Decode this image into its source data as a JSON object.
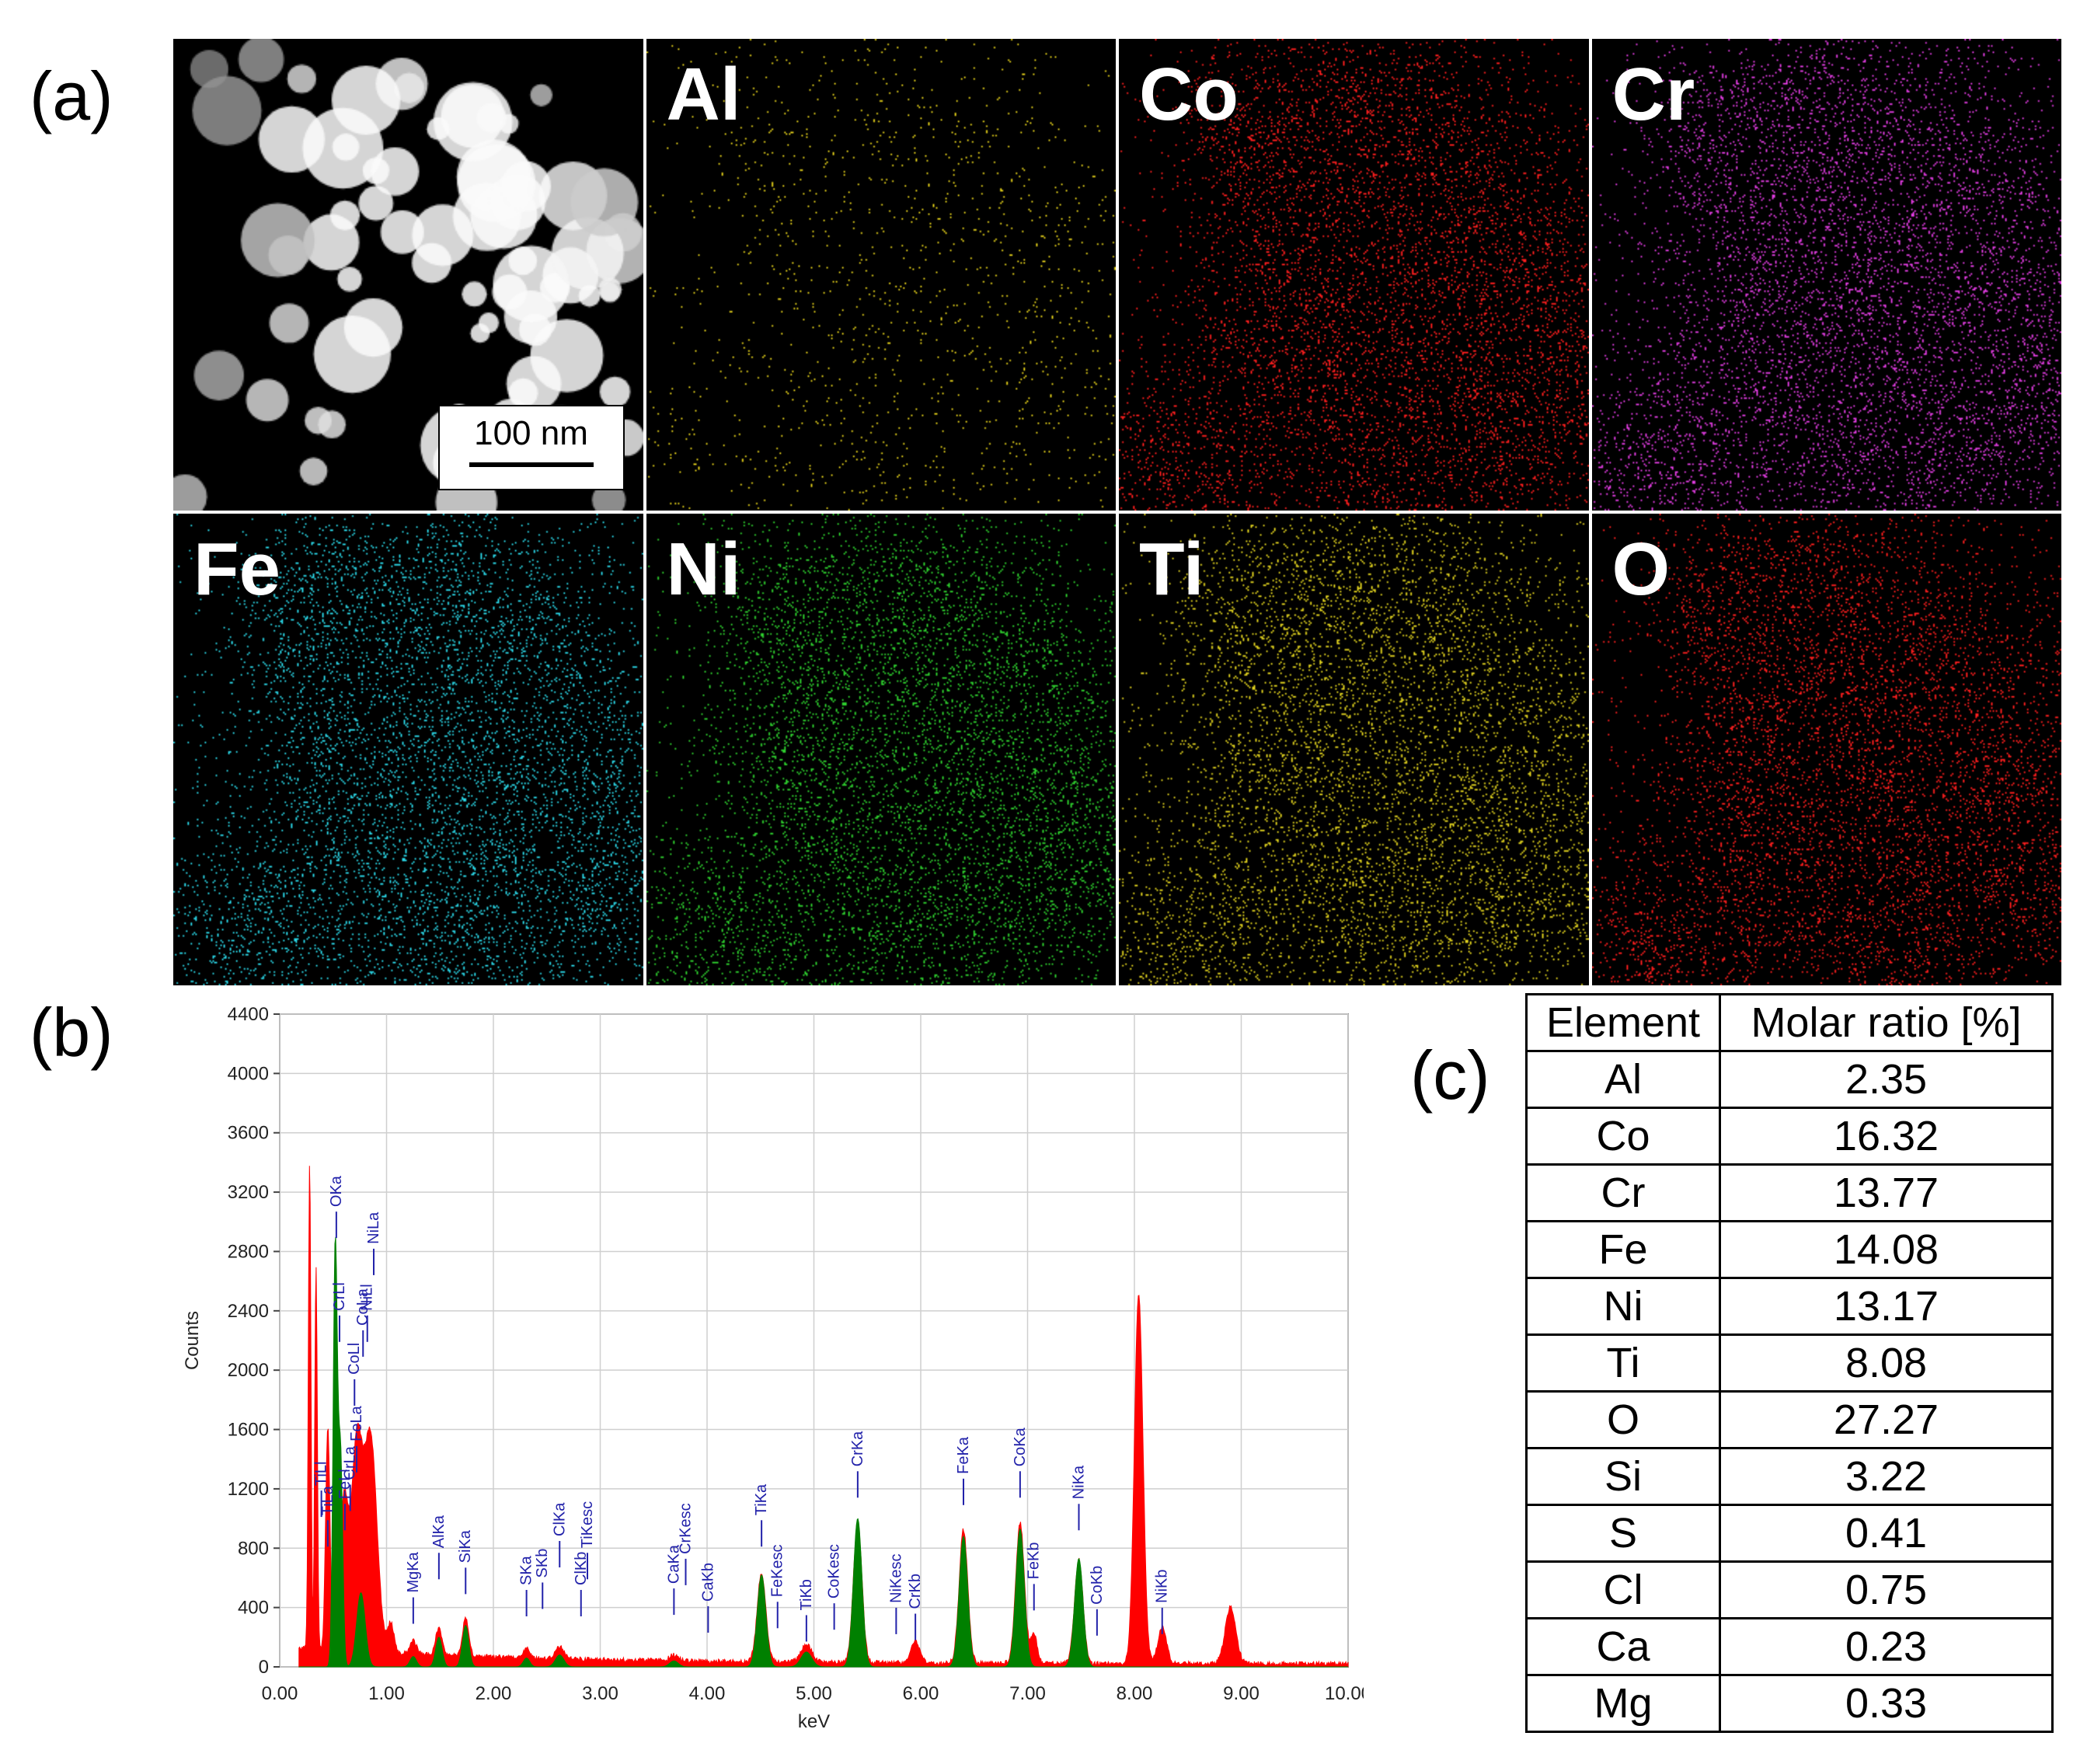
{
  "panels": {
    "a": "(a)",
    "b": "(b)",
    "c": "(c)"
  },
  "maps": [
    {
      "label": "",
      "color": "#d8d8d8",
      "kind": "haadf"
    },
    {
      "label": "Al",
      "color": "#e6d21a",
      "kind": "sparse"
    },
    {
      "label": "Co",
      "color": "#ff1e1e",
      "kind": "dense"
    },
    {
      "label": "Cr",
      "color": "#e23ce2",
      "kind": "dense"
    },
    {
      "label": "Fe",
      "color": "#2ad6e6",
      "kind": "dense"
    },
    {
      "label": "Ni",
      "color": "#2ed12e",
      "kind": "dense"
    },
    {
      "label": "Ti",
      "color": "#e0d21e",
      "kind": "dense"
    },
    {
      "label": "O",
      "color": "#ff1e1e",
      "kind": "dense"
    }
  ],
  "scale_bar": "100 nm",
  "chart_data": {
    "type": "area",
    "xlabel": "keV",
    "ylabel": "Counts",
    "xlim": [
      0,
      10
    ],
    "ylim": [
      0,
      4400
    ],
    "x_ticks": [
      "0.00",
      "1.00",
      "2.00",
      "3.00",
      "4.00",
      "5.00",
      "6.00",
      "7.00",
      "8.00",
      "9.00",
      "10.00"
    ],
    "y_ticks": [
      "0",
      "400",
      "800",
      "1200",
      "1600",
      "2000",
      "2400",
      "2800",
      "3200",
      "3600",
      "4000",
      "4400"
    ],
    "grid": true,
    "series": [
      {
        "color": "#ff0000",
        "peaks": [
          [
            0.28,
            3300,
            0.012
          ],
          [
            0.34,
            2600,
            0.012
          ],
          [
            0.45,
            1500,
            0.02
          ],
          [
            0.6,
            1000,
            0.04
          ],
          [
            0.72,
            1350,
            0.05
          ],
          [
            0.85,
            1450,
            0.06
          ],
          [
            1.04,
            200,
            0.03
          ],
          [
            1.25,
            90,
            0.03
          ],
          [
            1.49,
            180,
            0.03
          ],
          [
            1.74,
            250,
            0.03
          ],
          [
            2.31,
            60,
            0.03
          ],
          [
            2.62,
            80,
            0.04
          ],
          [
            3.69,
            40,
            0.04
          ],
          [
            4.51,
            600,
            0.04
          ],
          [
            4.93,
            120,
            0.05
          ],
          [
            5.41,
            950,
            0.04
          ],
          [
            5.95,
            150,
            0.04
          ],
          [
            6.4,
            900,
            0.04
          ],
          [
            6.93,
            950,
            0.04
          ],
          [
            7.06,
            200,
            0.03
          ],
          [
            7.48,
            700,
            0.04
          ],
          [
            8.04,
            2500,
            0.04
          ],
          [
            8.26,
            250,
            0.04
          ],
          [
            8.9,
            380,
            0.05
          ]
        ]
      },
      {
        "color": "#008000",
        "peaks": [
          [
            0.52,
            2850,
            0.02
          ],
          [
            0.57,
            1400,
            0.02
          ],
          [
            0.76,
            500,
            0.04
          ],
          [
            1.25,
            70,
            0.03
          ],
          [
            1.49,
            200,
            0.03
          ],
          [
            1.74,
            280,
            0.03
          ],
          [
            2.31,
            60,
            0.03
          ],
          [
            2.62,
            80,
            0.04
          ],
          [
            3.69,
            40,
            0.04
          ],
          [
            4.51,
            620,
            0.04
          ],
          [
            4.93,
            100,
            0.05
          ],
          [
            5.41,
            1000,
            0.04
          ],
          [
            6.4,
            880,
            0.04
          ],
          [
            6.93,
            930,
            0.04
          ],
          [
            7.48,
            730,
            0.04
          ]
        ]
      }
    ],
    "annotations": [
      {
        "text": "TiLl",
        "x": 0.39,
        "y": 1220
      },
      {
        "text": "TiLa",
        "x": 0.45,
        "y": 1020
      },
      {
        "text": "FeLl",
        "x": 0.61,
        "y": 1130
      },
      {
        "text": "CrLa",
        "x": 0.66,
        "y": 1260
      },
      {
        "text": "OKa",
        "x": 0.53,
        "y": 3100
      },
      {
        "text": "CrLl",
        "x": 0.56,
        "y": 2400
      },
      {
        "text": "FeLa",
        "x": 0.72,
        "y": 1520
      },
      {
        "text": "CoLl",
        "x": 0.7,
        "y": 1970
      },
      {
        "text": "CoLa",
        "x": 0.78,
        "y": 2300
      },
      {
        "text": "NiLl",
        "x": 0.82,
        "y": 2400
      },
      {
        "text": "NiLa",
        "x": 0.88,
        "y": 2850
      },
      {
        "text": "MgKa",
        "x": 1.25,
        "y": 500
      },
      {
        "text": "AlKa",
        "x": 1.49,
        "y": 800
      },
      {
        "text": "SiKa",
        "x": 1.74,
        "y": 700
      },
      {
        "text": "SKa",
        "x": 2.31,
        "y": 550
      },
      {
        "text": "SKb",
        "x": 2.46,
        "y": 600
      },
      {
        "text": "ClKa",
        "x": 2.62,
        "y": 880
      },
      {
        "text": "ClKb",
        "x": 2.82,
        "y": 550
      },
      {
        "text": "TiKesc",
        "x": 2.88,
        "y": 800
      },
      {
        "text": "CaKa",
        "x": 3.69,
        "y": 560
      },
      {
        "text": "CrKesc",
        "x": 3.8,
        "y": 760
      },
      {
        "text": "CaKb",
        "x": 4.01,
        "y": 440
      },
      {
        "text": "TiKa",
        "x": 4.51,
        "y": 1020
      },
      {
        "text": "FeKesc",
        "x": 4.66,
        "y": 470
      },
      {
        "text": "TiKb",
        "x": 4.93,
        "y": 380
      },
      {
        "text": "CoKesc",
        "x": 5.19,
        "y": 460
      },
      {
        "text": "CrKa",
        "x": 5.41,
        "y": 1350
      },
      {
        "text": "NiKesc",
        "x": 5.77,
        "y": 430
      },
      {
        "text": "CrKb",
        "x": 5.95,
        "y": 390
      },
      {
        "text": "FeKa",
        "x": 6.4,
        "y": 1300
      },
      {
        "text": "CoKa",
        "x": 6.93,
        "y": 1350
      },
      {
        "text": "FeKb",
        "x": 7.06,
        "y": 590
      },
      {
        "text": "NiKa",
        "x": 7.48,
        "y": 1130
      },
      {
        "text": "CoKb",
        "x": 7.65,
        "y": 420
      },
      {
        "text": "NiKb",
        "x": 8.26,
        "y": 430
      }
    ]
  },
  "table": {
    "headers": [
      "Element",
      "Molar ratio [%]"
    ],
    "rows": [
      [
        "Al",
        "2.35"
      ],
      [
        "Co",
        "16.32"
      ],
      [
        "Cr",
        "13.77"
      ],
      [
        "Fe",
        "14.08"
      ],
      [
        "Ni",
        "13.17"
      ],
      [
        "Ti",
        "8.08"
      ],
      [
        "O",
        "27.27"
      ],
      [
        "Si",
        "3.22"
      ],
      [
        "S",
        "0.41"
      ],
      [
        "Cl",
        "0.75"
      ],
      [
        "Ca",
        "0.23"
      ],
      [
        "Mg",
        "0.33"
      ]
    ]
  }
}
